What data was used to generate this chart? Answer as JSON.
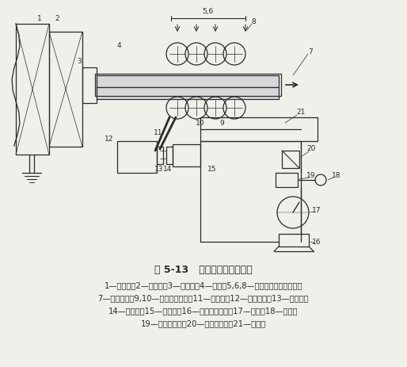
{
  "title": "图 5-13   液马达间断牵引装置",
  "caption_lines": [
    "1—浇注炉；2—炉前室；3—结晶器；4—铸锭；5,6,8—牵引装置的上压紧辊；",
    "7—引拉方向；9,10—下辊和环形链；11—传动轴；12—减速装置；13—联轴器；",
    "14—液马达；15—回油管；16—压力油贮存器；17—油泵；18—凸轮；",
    "19—机械控制阀；20—流量调节器；21—进油管"
  ],
  "bg_color": "#f0efea",
  "text_color": "#1a1a1a"
}
